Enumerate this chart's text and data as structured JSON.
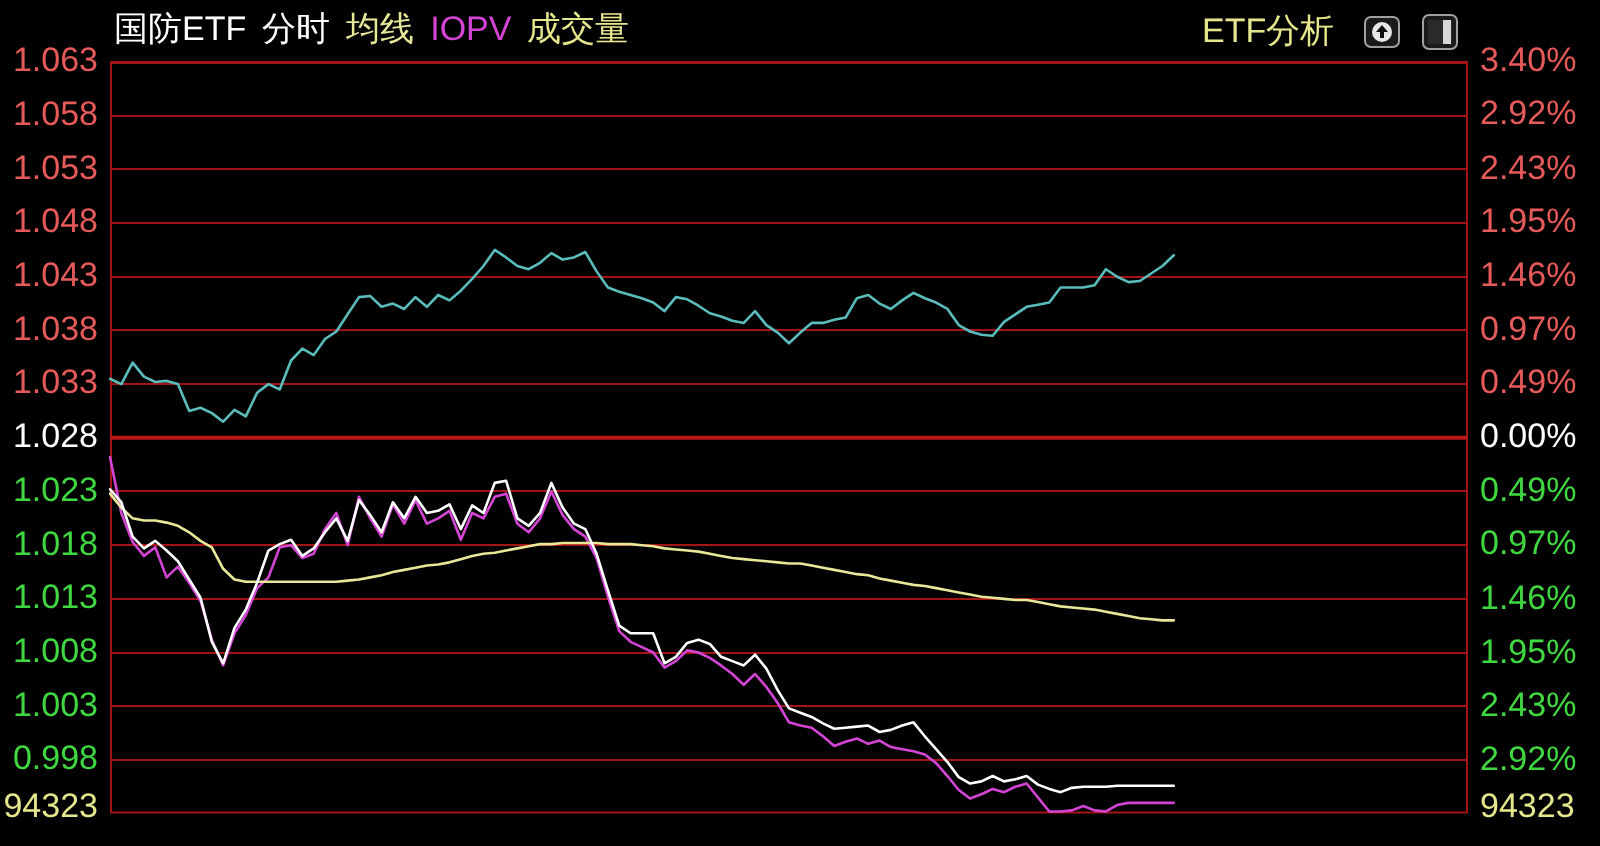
{
  "chart_data": {
    "type": "line",
    "title": "国防ETF",
    "categories": [
      null,
      null,
      null,
      null,
      null,
      null,
      null,
      null,
      null,
      null,
      null,
      null,
      null,
      null,
      null,
      null,
      null,
      null,
      null,
      null,
      null,
      null,
      null,
      null,
      null,
      null,
      null,
      null,
      null,
      null,
      null,
      null,
      null,
      null,
      null,
      null,
      null,
      null,
      null,
      null,
      null,
      null,
      null,
      null,
      null,
      null,
      null,
      null,
      null,
      null,
      null,
      null,
      null,
      null,
      null,
      null,
      null,
      null,
      null,
      null,
      null,
      null,
      null,
      null,
      null,
      null,
      null,
      null,
      null,
      null,
      null,
      null,
      null,
      null,
      null,
      null,
      null,
      null,
      null,
      null,
      null,
      null,
      null,
      null,
      null,
      null,
      null,
      null,
      null,
      null,
      null,
      null,
      null,
      null,
      null,
      null,
      null,
      null,
      null,
      null,
      null,
      null,
      null,
      null,
      null,
      null,
      null,
      null,
      null,
      null,
      null,
      null,
      null,
      null,
      null,
      null,
      null,
      null,
      null,
      null,
      null
    ],
    "series": [
      {
        "name": "分时",
        "color": "#ffffff",
        "values": [
          1.0232,
          1.022,
          1.0188,
          1.0177,
          1.0184,
          1.0175,
          1.0165,
          1.0148,
          1.0131,
          1.009,
          1.007,
          1.0103,
          1.012,
          1.0145,
          1.0175,
          1.0181,
          1.0185,
          1.017,
          1.0177,
          1.0192,
          1.0205,
          1.0184,
          1.0222,
          1.0208,
          1.0192,
          1.022,
          1.0205,
          1.0225,
          1.021,
          1.0212,
          1.0218,
          1.0195,
          1.0217,
          1.021,
          1.0238,
          1.024,
          1.0205,
          1.0198,
          1.021,
          1.0238,
          1.0215,
          1.02,
          1.0195,
          1.0172,
          1.0138,
          1.0105,
          1.0098,
          1.0098,
          1.0098,
          1.007,
          1.0076,
          1.0089,
          1.0092,
          1.0088,
          1.0076,
          1.0072,
          1.0068,
          1.0078,
          1.0065,
          1.0045,
          1.0028,
          1.0024,
          1.002,
          1.0014,
          1.0009,
          1.001,
          1.0011,
          1.0012,
          1.0006,
          1.0008,
          1.0012,
          1.0015,
          1.0002,
          0.999,
          0.9978,
          0.9964,
          0.9958,
          0.996,
          0.9965,
          0.996,
          0.9962,
          0.9965,
          0.9957,
          0.9953,
          0.995,
          0.9954,
          0.9955,
          0.9955,
          0.9955,
          0.9956,
          0.9956,
          0.9956,
          0.9956,
          0.9956,
          0.9956,
          null,
          null,
          null,
          null,
          null,
          null,
          null,
          null,
          null,
          null,
          null,
          null,
          null,
          null,
          null,
          null,
          null,
          null,
          null,
          null,
          null,
          null,
          null,
          null,
          null,
          null
        ]
      },
      {
        "name": "均线",
        "color": "#e8e898",
        "values": [
          1.0228,
          1.0215,
          1.0205,
          1.0203,
          1.0203,
          1.0201,
          1.0198,
          1.0192,
          1.0184,
          1.0178,
          1.0158,
          1.0148,
          1.0146,
          1.0146,
          1.0146,
          1.0146,
          1.0146,
          1.0146,
          1.0146,
          1.0146,
          1.0146,
          1.0147,
          1.0148,
          1.015,
          1.0152,
          1.0155,
          1.0157,
          1.0159,
          1.0161,
          1.0162,
          1.0164,
          1.0167,
          1.017,
          1.0172,
          1.0173,
          1.0175,
          1.0177,
          1.0179,
          1.0181,
          1.0181,
          1.0182,
          1.0182,
          1.0182,
          1.0182,
          1.0181,
          1.0181,
          1.0181,
          1.018,
          1.0179,
          1.0177,
          1.0176,
          1.0175,
          1.0174,
          1.0172,
          1.017,
          1.0168,
          1.0167,
          1.0166,
          1.0165,
          1.0164,
          1.0163,
          1.0163,
          1.0161,
          1.0159,
          1.0157,
          1.0155,
          1.0153,
          1.0152,
          1.0149,
          1.0147,
          1.0145,
          1.0143,
          1.0142,
          1.014,
          1.0138,
          1.0136,
          1.0134,
          1.0132,
          1.0131,
          1.013,
          1.0129,
          1.0129,
          1.0127,
          1.0125,
          1.0123,
          1.0122,
          1.0121,
          1.012,
          1.0118,
          1.0116,
          1.0114,
          1.0112,
          1.0111,
          1.011,
          1.011,
          null,
          null,
          null,
          null,
          null,
          null,
          null,
          null,
          null,
          null,
          null,
          null,
          null,
          null,
          null,
          null,
          null,
          null,
          null,
          null,
          null,
          null,
          null,
          null,
          null,
          null
        ]
      },
      {
        "name": "IOPV",
        "color": "#d545d5",
        "values": [
          1.0262,
          1.021,
          1.0183,
          1.017,
          1.0178,
          1.015,
          1.016,
          1.0145,
          1.0128,
          1.0092,
          1.0068,
          1.0098,
          1.0115,
          1.014,
          1.015,
          1.0178,
          1.018,
          1.0168,
          1.0172,
          1.0195,
          1.021,
          1.018,
          1.0225,
          1.0205,
          1.0188,
          1.0218,
          1.02,
          1.0222,
          1.02,
          1.0205,
          1.0212,
          1.0185,
          1.021,
          1.0205,
          1.0225,
          1.0228,
          1.02,
          1.0192,
          1.0205,
          1.023,
          1.0208,
          1.0195,
          1.0188,
          1.0168,
          1.0132,
          1.01,
          1.009,
          1.0085,
          1.008,
          1.0066,
          1.0072,
          1.0082,
          1.008,
          1.0075,
          1.0068,
          1.006,
          1.005,
          1.006,
          1.0048,
          1.0033,
          1.0015,
          1.0012,
          1.001,
          1.0002,
          0.9993,
          0.9997,
          1.0,
          0.9995,
          0.9998,
          0.9992,
          0.999,
          0.9988,
          0.9985,
          0.9977,
          0.9965,
          0.9952,
          0.9944,
          0.9948,
          0.9953,
          0.995,
          0.9955,
          0.9958,
          0.9945,
          0.9932,
          0.9932,
          0.9933,
          0.9937,
          0.9933,
          0.9932,
          0.9938,
          0.994,
          0.994,
          0.994,
          0.994,
          0.994,
          null,
          null,
          null,
          null,
          null,
          null,
          null,
          null,
          null,
          null,
          null,
          null,
          null,
          null,
          null,
          null,
          null,
          null,
          null,
          null,
          null,
          null,
          null,
          null,
          null,
          null
        ]
      },
      {
        "color": "#5bbcbc",
        "values": [
          1.0335,
          1.033,
          1.035,
          1.0337,
          1.0332,
          1.0333,
          1.033,
          1.0305,
          1.0308,
          1.0303,
          1.0295,
          1.0306,
          1.03,
          1.0322,
          1.033,
          1.0325,
          1.0352,
          1.0363,
          1.0357,
          1.0372,
          1.0379,
          1.0395,
          1.0411,
          1.0412,
          1.0402,
          1.0405,
          1.04,
          1.0411,
          1.0402,
          1.0413,
          1.0408,
          1.0417,
          1.0428,
          1.044,
          1.0455,
          1.0448,
          1.044,
          1.0437,
          1.0443,
          1.0452,
          1.0446,
          1.0448,
          1.0453,
          1.0435,
          1.042,
          1.0416,
          1.0413,
          1.041,
          1.0406,
          1.0398,
          1.0411,
          1.0409,
          1.0403,
          1.0396,
          1.0393,
          1.0389,
          1.0387,
          1.0398,
          1.0385,
          1.0378,
          1.0368,
          1.0378,
          1.0387,
          1.0387,
          1.039,
          1.0392,
          1.041,
          1.0413,
          1.0405,
          1.04,
          1.0408,
          1.0415,
          1.041,
          1.0406,
          1.04,
          1.0385,
          1.0379,
          1.0376,
          1.0375,
          1.0388,
          1.0395,
          1.0402,
          1.0404,
          1.0406,
          1.042,
          1.042,
          1.042,
          1.0422,
          1.0437,
          1.043,
          1.0425,
          1.0426,
          1.0433,
          1.044,
          1.045,
          null,
          null,
          null,
          null,
          null,
          null,
          null,
          null,
          null,
          null,
          null,
          null,
          null,
          null,
          null,
          null,
          null,
          null,
          null,
          null,
          null,
          null,
          null,
          null,
          null,
          null
        ]
      }
    ],
    "ylim": [
      0.993,
      1.063
    ],
    "yticks": [
      0.998,
      1.003,
      1.008,
      1.013,
      1.018,
      1.023,
      1.028,
      1.033,
      1.038,
      1.043,
      1.048,
      1.053,
      1.058,
      1.063
    ],
    "y2lim": [
      -3.4,
      3.4
    ],
    "y2ticks": [
      {
        "value": -2.92,
        "label": "2.92%"
      },
      {
        "value": -2.43,
        "label": "2.43%"
      },
      {
        "value": -1.95,
        "label": "1.95%"
      },
      {
        "value": -1.46,
        "label": "1.46%"
      },
      {
        "value": -0.97,
        "label": "0.97%"
      },
      {
        "value": -0.49,
        "label": "0.49%"
      },
      {
        "value": 0,
        "label": "0.00%"
      },
      {
        "value": 0.49,
        "label": "0.49%"
      },
      {
        "value": 0.97,
        "label": "0.97%"
      },
      {
        "value": 1.46,
        "label": "1.46%"
      },
      {
        "value": 1.95,
        "label": "1.95%"
      },
      {
        "value": 2.43,
        "label": "2.43%"
      },
      {
        "value": 2.92,
        "label": "2.92%"
      },
      {
        "value": 3.4,
        "label": "3.40%"
      }
    ],
    "ref_lines": [
      {
        "axis": "y",
        "value": 1.028,
        "color": "#b81818"
      }
    ],
    "grid": "y",
    "legend": "top left",
    "annotations": [
      "成交量",
      "ETF分析",
      "94323",
      "94323"
    ]
  }
}
